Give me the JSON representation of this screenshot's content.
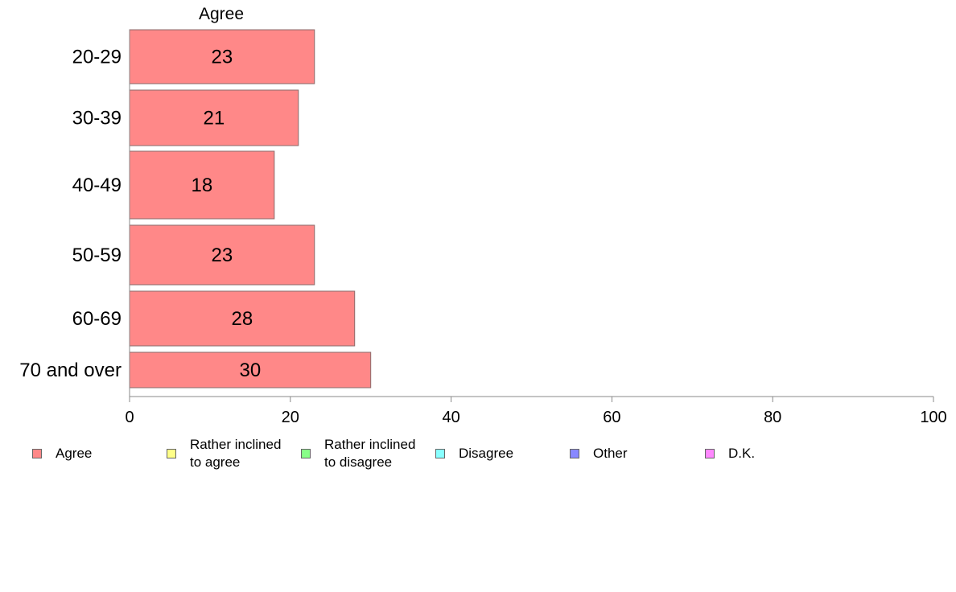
{
  "chart_data": {
    "type": "bar",
    "orientation": "horizontal",
    "stacked": true,
    "title": "",
    "xlabel": "",
    "ylabel": "",
    "categories": [
      "20-29",
      "30-39",
      "40-49",
      "50-59",
      "60-69",
      "70 and over"
    ],
    "series": [
      {
        "name": "Agree",
        "values": [
          23,
          21,
          18,
          23,
          28,
          30
        ],
        "color": "#ff8888"
      },
      {
        "name": "Rather inclined\nto agree",
        "values": [
          null,
          null,
          null,
          null,
          null,
          null
        ],
        "color": "#ffff88"
      },
      {
        "name": "Rather inclined\nto disagree",
        "values": [
          null,
          null,
          null,
          null,
          null,
          null
        ],
        "color": "#88ff88"
      },
      {
        "name": "Disagree",
        "values": [
          null,
          null,
          null,
          null,
          null,
          null
        ],
        "color": "#88ffff"
      },
      {
        "name": "Other",
        "values": [
          null,
          null,
          null,
          null,
          null,
          null
        ],
        "color": "#8888ff"
      },
      {
        "name": "D.K.",
        "values": [
          null,
          null,
          null,
          null,
          null,
          null
        ],
        "color": "#ff88ff"
      }
    ],
    "column_header": "Agree",
    "xlim": [
      0,
      100
    ],
    "xticks": [
      "0",
      "20",
      "40",
      "60",
      "80",
      "100"
    ],
    "grid": false,
    "legend_position": "bottom"
  }
}
